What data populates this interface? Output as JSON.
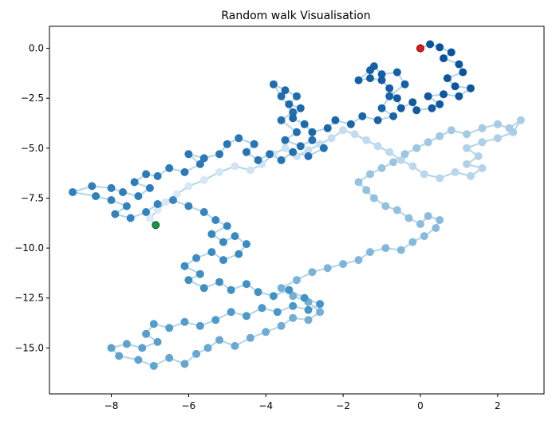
{
  "chart_data": {
    "type": "scatter",
    "title": "Random walk Visualisation",
    "xlabel": "",
    "ylabel": "",
    "xlim": [
      -9.6,
      3.2
    ],
    "ylim": [
      -17.3,
      1.1
    ],
    "xticks": [
      -8,
      -6,
      -4,
      -2,
      0,
      2
    ],
    "xtick_labels": [
      "−8",
      "−6",
      "−4",
      "−2",
      "0",
      "2"
    ],
    "yticks": [
      0,
      -2.5,
      -5,
      -7.5,
      -10,
      -12.5,
      -15
    ],
    "ytick_labels": [
      "0.0",
      "−2.5",
      "−5.0",
      "−7.5",
      "−10.0",
      "−12.5",
      "−15.0"
    ],
    "grid": false,
    "colormap": "Blues (reversed: early steps dark, late steps light)",
    "series": [
      {
        "name": "",
        "style": "scatter+line",
        "points": [
          [
            0.0,
            0.0
          ],
          [
            0.25,
            0.2
          ],
          [
            0.5,
            0.05
          ],
          [
            0.8,
            -0.2
          ],
          [
            0.6,
            -0.5
          ],
          [
            1.0,
            -0.8
          ],
          [
            1.1,
            -1.2
          ],
          [
            0.7,
            -1.5
          ],
          [
            0.9,
            -1.9
          ],
          [
            1.3,
            -2.0
          ],
          [
            1.0,
            -2.4
          ],
          [
            0.6,
            -2.3
          ],
          [
            0.2,
            -2.4
          ],
          [
            0.5,
            -2.8
          ],
          [
            0.3,
            -3.0
          ],
          [
            -0.1,
            -3.1
          ],
          [
            -0.2,
            -2.7
          ],
          [
            -0.5,
            -3.0
          ],
          [
            -0.6,
            -2.5
          ],
          [
            -0.8,
            -2.0
          ],
          [
            -1.0,
            -1.6
          ],
          [
            -1.3,
            -1.5
          ],
          [
            -1.6,
            -1.6
          ],
          [
            -1.3,
            -1.1
          ],
          [
            -1.2,
            -0.9
          ],
          [
            -1.0,
            -1.3
          ],
          [
            -0.6,
            -1.2
          ],
          [
            -0.4,
            -1.8
          ],
          [
            -0.8,
            -2.4
          ],
          [
            -1.0,
            -3.0
          ],
          [
            -0.7,
            -3.4
          ],
          [
            -1.1,
            -3.6
          ],
          [
            -1.5,
            -3.4
          ],
          [
            -1.8,
            -3.8
          ],
          [
            -2.2,
            -3.6
          ],
          [
            -2.4,
            -4.0
          ],
          [
            -2.8,
            -4.2
          ],
          [
            -3.0,
            -3.8
          ],
          [
            -3.3,
            -3.5
          ],
          [
            -3.1,
            -3.0
          ],
          [
            -3.4,
            -2.8
          ],
          [
            -3.2,
            -2.4
          ],
          [
            -3.5,
            -2.1
          ],
          [
            -3.8,
            -1.8
          ],
          [
            -3.6,
            -2.4
          ],
          [
            -3.3,
            -3.2
          ],
          [
            -3.6,
            -3.6
          ],
          [
            -3.2,
            -4.2
          ],
          [
            -3.5,
            -4.6
          ],
          [
            -3.1,
            -4.9
          ],
          [
            -2.8,
            -4.6
          ],
          [
            -2.5,
            -5.0
          ],
          [
            -2.9,
            -5.4
          ],
          [
            -3.3,
            -5.2
          ],
          [
            -3.6,
            -5.6
          ],
          [
            -3.9,
            -5.3
          ],
          [
            -4.2,
            -5.6
          ],
          [
            -4.5,
            -5.2
          ],
          [
            -4.3,
            -4.8
          ],
          [
            -4.7,
            -4.5
          ],
          [
            -5.0,
            -4.8
          ],
          [
            -5.2,
            -5.3
          ],
          [
            -5.6,
            -5.5
          ],
          [
            -6.0,
            -5.3
          ],
          [
            -5.7,
            -5.8
          ],
          [
            -6.1,
            -6.2
          ],
          [
            -6.5,
            -6.0
          ],
          [
            -6.8,
            -6.4
          ],
          [
            -7.1,
            -6.3
          ],
          [
            -7.4,
            -6.7
          ],
          [
            -7.0,
            -7.0
          ],
          [
            -7.3,
            -7.4
          ],
          [
            -7.7,
            -7.2
          ],
          [
            -8.0,
            -7.0
          ],
          [
            -8.5,
            -6.9
          ],
          [
            -9.0,
            -7.2
          ],
          [
            -8.4,
            -7.4
          ],
          [
            -8.0,
            -7.6
          ],
          [
            -7.6,
            -7.9
          ],
          [
            -7.9,
            -8.3
          ],
          [
            -7.5,
            -8.5
          ],
          [
            -7.1,
            -8.2
          ],
          [
            -6.8,
            -7.8
          ],
          [
            -6.4,
            -7.6
          ],
          [
            -6.0,
            -7.9
          ],
          [
            -5.6,
            -8.2
          ],
          [
            -5.3,
            -8.6
          ],
          [
            -5.0,
            -8.9
          ],
          [
            -5.4,
            -9.3
          ],
          [
            -5.1,
            -9.7
          ],
          [
            -4.8,
            -9.4
          ],
          [
            -4.5,
            -9.8
          ],
          [
            -4.7,
            -10.3
          ],
          [
            -5.1,
            -10.6
          ],
          [
            -5.4,
            -10.2
          ],
          [
            -5.8,
            -10.5
          ],
          [
            -6.1,
            -10.9
          ],
          [
            -5.7,
            -11.3
          ],
          [
            -6.0,
            -11.6
          ],
          [
            -5.6,
            -12.0
          ],
          [
            -5.2,
            -11.7
          ],
          [
            -4.9,
            -12.1
          ],
          [
            -4.5,
            -11.8
          ],
          [
            -4.2,
            -12.2
          ],
          [
            -3.8,
            -12.4
          ],
          [
            -3.4,
            -12.1
          ],
          [
            -3.0,
            -12.5
          ],
          [
            -2.6,
            -12.8
          ],
          [
            -2.9,
            -13.1
          ],
          [
            -3.3,
            -12.9
          ],
          [
            -3.7,
            -13.2
          ],
          [
            -4.1,
            -13.0
          ],
          [
            -4.5,
            -13.4
          ],
          [
            -4.9,
            -13.2
          ],
          [
            -5.3,
            -13.6
          ],
          [
            -5.7,
            -13.9
          ],
          [
            -6.1,
            -13.7
          ],
          [
            -6.5,
            -14.0
          ],
          [
            -6.9,
            -13.8
          ],
          [
            -7.1,
            -14.3
          ],
          [
            -6.8,
            -14.7
          ],
          [
            -7.2,
            -15.0
          ],
          [
            -7.6,
            -14.8
          ],
          [
            -8.0,
            -15.0
          ],
          [
            -7.8,
            -15.4
          ],
          [
            -7.3,
            -15.6
          ],
          [
            -6.9,
            -15.9
          ],
          [
            -6.5,
            -15.5
          ],
          [
            -6.1,
            -15.8
          ],
          [
            -5.8,
            -15.3
          ],
          [
            -5.5,
            -15.0
          ],
          [
            -5.2,
            -14.6
          ],
          [
            -4.8,
            -14.9
          ],
          [
            -4.4,
            -14.5
          ],
          [
            -4.0,
            -14.2
          ],
          [
            -3.6,
            -13.9
          ],
          [
            -3.3,
            -13.5
          ],
          [
            -2.9,
            -13.6
          ],
          [
            -2.6,
            -13.2
          ],
          [
            -2.9,
            -12.7
          ],
          [
            -3.3,
            -12.4
          ],
          [
            -3.6,
            -12.0
          ],
          [
            -3.2,
            -11.6
          ],
          [
            -2.8,
            -11.2
          ],
          [
            -2.4,
            -11.0
          ],
          [
            -2.0,
            -10.8
          ],
          [
            -1.6,
            -10.6
          ],
          [
            -1.3,
            -10.2
          ],
          [
            -0.9,
            -10.0
          ],
          [
            -0.5,
            -10.1
          ],
          [
            -0.2,
            -9.7
          ],
          [
            0.1,
            -9.4
          ],
          [
            0.4,
            -9.0
          ],
          [
            0.5,
            -8.6
          ],
          [
            0.2,
            -8.4
          ],
          [
            0.0,
            -8.8
          ],
          [
            -0.3,
            -8.5
          ],
          [
            -0.6,
            -8.1
          ],
          [
            -0.9,
            -7.9
          ],
          [
            -1.2,
            -7.5
          ],
          [
            -1.4,
            -7.1
          ],
          [
            -1.6,
            -6.7
          ],
          [
            -1.3,
            -6.3
          ],
          [
            -1.0,
            -6.0
          ],
          [
            -0.7,
            -5.7
          ],
          [
            -0.4,
            -5.3
          ],
          [
            -0.1,
            -5.0
          ],
          [
            0.2,
            -4.7
          ],
          [
            0.5,
            -4.4
          ],
          [
            0.8,
            -4.1
          ],
          [
            1.2,
            -4.3
          ],
          [
            1.6,
            -4.0
          ],
          [
            2.0,
            -3.8
          ],
          [
            2.3,
            -4.0
          ],
          [
            2.6,
            -3.6
          ],
          [
            2.4,
            -4.2
          ],
          [
            2.0,
            -4.5
          ],
          [
            1.6,
            -4.7
          ],
          [
            1.2,
            -5.0
          ],
          [
            1.5,
            -5.4
          ],
          [
            1.2,
            -5.8
          ],
          [
            1.6,
            -6.0
          ],
          [
            1.3,
            -6.4
          ],
          [
            0.9,
            -6.2
          ],
          [
            0.5,
            -6.5
          ],
          [
            0.1,
            -6.3
          ],
          [
            -0.2,
            -5.9
          ],
          [
            -0.5,
            -5.6
          ],
          [
            -0.8,
            -5.2
          ],
          [
            -1.1,
            -4.9
          ],
          [
            -1.4,
            -4.6
          ],
          [
            -1.7,
            -4.3
          ],
          [
            -2.0,
            -4.1
          ],
          [
            -2.3,
            -4.5
          ],
          [
            -2.6,
            -4.8
          ],
          [
            -2.9,
            -5.1
          ],
          [
            -3.2,
            -5.4
          ],
          [
            -3.5,
            -5.0
          ],
          [
            -3.8,
            -5.3
          ],
          [
            -4.1,
            -5.8
          ],
          [
            -4.4,
            -6.1
          ],
          [
            -4.8,
            -5.9
          ],
          [
            -5.2,
            -6.2
          ],
          [
            -5.6,
            -6.6
          ],
          [
            -6.0,
            -6.9
          ],
          [
            -6.3,
            -7.3
          ],
          [
            -6.6,
            -7.7
          ],
          [
            -6.8,
            -8.1
          ],
          [
            -7.0,
            -8.5
          ],
          [
            -6.85,
            -8.85
          ]
        ]
      }
    ],
    "start_point": [
      0.0,
      0.0
    ],
    "start_color": "#e41a1c",
    "end_point": [
      -6.85,
      -8.85
    ],
    "end_color": "#1a9641",
    "colors": {
      "line": "#9ecae1",
      "dark": "#08519c",
      "light": "#deebf7",
      "axis": "#000000"
    }
  }
}
